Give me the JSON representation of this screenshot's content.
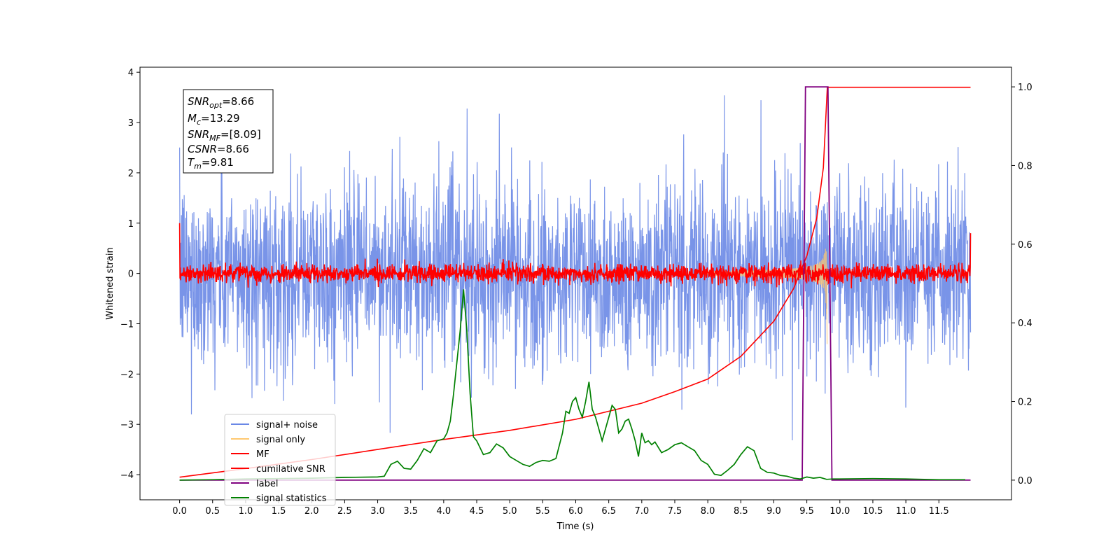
{
  "chart_data": {
    "type": "line",
    "title": "",
    "xlabel": "Time (s)",
    "ylabel": "Whitened strain",
    "xlim": [
      -0.6,
      12.6
    ],
    "ylim": [
      -4.5,
      4.1
    ],
    "y2lim": [
      -0.05,
      1.05
    ],
    "x_ticks": [
      0.0,
      0.5,
      1.0,
      1.5,
      2.0,
      2.5,
      3.0,
      3.5,
      4.0,
      4.5,
      5.0,
      5.5,
      6.0,
      6.5,
      7.0,
      7.5,
      8.0,
      8.5,
      9.0,
      9.5,
      10.0,
      10.5,
      11.0,
      11.5
    ],
    "x_tick_labels": [
      "0.0",
      "0.5",
      "1.0",
      "1.5",
      "2.0",
      "2.5",
      "3.0",
      "3.5",
      "4.0",
      "4.5",
      "5.0",
      "5.5",
      "6.0",
      "6.5",
      "7.0",
      "7.5",
      "8.0",
      "8.5",
      "9.0",
      "9.5",
      "10.0",
      "10.5",
      "11.0",
      "11.5"
    ],
    "y_ticks": [
      -4,
      -3,
      -2,
      -1,
      0,
      1,
      2,
      3,
      4
    ],
    "y_tick_labels": [
      "−4",
      "−3",
      "−2",
      "−1",
      "0",
      "1",
      "2",
      "3",
      "4"
    ],
    "y2_ticks": [
      0.0,
      0.2,
      0.4,
      0.6,
      0.8,
      1.0
    ],
    "y2_tick_labels": [
      "0.0",
      "0.2",
      "0.4",
      "0.6",
      "0.8",
      "1.0"
    ],
    "grid": false,
    "legend_position": "lower-left",
    "legend": [
      {
        "label": "signal+ noise",
        "color": "#6a88e6"
      },
      {
        "label": "signal only",
        "color": "#ffc870"
      },
      {
        "label": "MF",
        "color": "#ff0000"
      },
      {
        "label": "cumilative SNR",
        "color": "#ff0000"
      },
      {
        "label": "label",
        "color": "#800080"
      },
      {
        "label": "signal statistics",
        "color": "#008000"
      }
    ],
    "annotation": {
      "snr_opt": "8.66",
      "mc": "13.29",
      "snr_mf": "[8.09]",
      "csnr": "8.66",
      "tm": "9.81"
    },
    "series": [
      {
        "name": "signal+ noise",
        "axis": "left",
        "color": "#6a88e6",
        "x_range": [
          0.0,
          11.98
        ],
        "noise_std": 0.95,
        "max_value": 3.7,
        "min_value": -4.15
      },
      {
        "name": "signal only",
        "axis": "left",
        "color": "#ffc870",
        "chirp_start": 8.0,
        "merger_time": 9.81,
        "peak_amplitude": 1.7
      },
      {
        "name": "MF",
        "axis": "left",
        "color": "#ff0000",
        "x_range": [
          0.0,
          11.98
        ],
        "noise_std": 0.09,
        "edge_values": [
          1.0,
          0.8
        ]
      },
      {
        "name": "cumilative SNR",
        "axis": "left",
        "color": "#ff0000",
        "x": [
          0.0,
          1.0,
          2.0,
          3.0,
          4.0,
          5.0,
          6.0,
          7.0,
          7.5,
          8.0,
          8.5,
          9.0,
          9.3,
          9.5,
          9.65,
          9.75,
          9.81,
          11.98
        ],
        "y": [
          -4.05,
          -3.88,
          -3.7,
          -3.5,
          -3.3,
          -3.12,
          -2.9,
          -2.58,
          -2.35,
          -2.1,
          -1.65,
          -0.95,
          -0.3,
          0.35,
          1.1,
          2.1,
          3.7,
          3.7
        ]
      },
      {
        "name": "label",
        "axis": "right",
        "color": "#800080",
        "x": [
          0.0,
          9.43,
          9.48,
          9.82,
          9.88,
          11.98
        ],
        "y": [
          0.0,
          0.0,
          1.0,
          1.0,
          0.0,
          0.0
        ]
      },
      {
        "name": "signal statistics",
        "axis": "right",
        "color": "#008000",
        "x": [
          0.0,
          0.5,
          1.0,
          1.5,
          2.0,
          2.5,
          3.0,
          3.1,
          3.2,
          3.3,
          3.4,
          3.5,
          3.6,
          3.7,
          3.8,
          3.9,
          4.0,
          4.05,
          4.1,
          4.15,
          4.2,
          4.25,
          4.3,
          4.35,
          4.4,
          4.45,
          4.5,
          4.6,
          4.7,
          4.8,
          4.9,
          5.0,
          5.1,
          5.2,
          5.3,
          5.4,
          5.5,
          5.6,
          5.7,
          5.8,
          5.85,
          5.9,
          5.95,
          6.0,
          6.05,
          6.1,
          6.15,
          6.2,
          6.25,
          6.3,
          6.4,
          6.5,
          6.55,
          6.6,
          6.65,
          6.7,
          6.75,
          6.8,
          6.85,
          6.9,
          6.95,
          7.0,
          7.05,
          7.1,
          7.15,
          7.2,
          7.3,
          7.4,
          7.5,
          7.6,
          7.7,
          7.8,
          7.9,
          8.0,
          8.1,
          8.2,
          8.3,
          8.4,
          8.5,
          8.6,
          8.7,
          8.8,
          8.9,
          9.0,
          9.1,
          9.2,
          9.3,
          9.4,
          9.5,
          9.6,
          9.7,
          9.8,
          9.9,
          10.0,
          10.5,
          11.0,
          11.5,
          11.9
        ],
        "y": [
          0.0,
          0.001,
          0.003,
          0.004,
          0.005,
          0.007,
          0.008,
          0.01,
          0.04,
          0.048,
          0.03,
          0.028,
          0.05,
          0.08,
          0.07,
          0.1,
          0.105,
          0.12,
          0.15,
          0.22,
          0.3,
          0.38,
          0.485,
          0.38,
          0.22,
          0.11,
          0.1,
          0.065,
          0.07,
          0.092,
          0.082,
          0.06,
          0.05,
          0.04,
          0.035,
          0.045,
          0.05,
          0.048,
          0.055,
          0.12,
          0.175,
          0.17,
          0.2,
          0.21,
          0.18,
          0.16,
          0.2,
          0.25,
          0.18,
          0.16,
          0.1,
          0.16,
          0.19,
          0.18,
          0.12,
          0.13,
          0.15,
          0.155,
          0.13,
          0.1,
          0.06,
          0.12,
          0.095,
          0.1,
          0.09,
          0.097,
          0.07,
          0.078,
          0.09,
          0.095,
          0.085,
          0.075,
          0.05,
          0.04,
          0.015,
          0.012,
          0.025,
          0.04,
          0.065,
          0.085,
          0.075,
          0.03,
          0.02,
          0.018,
          0.012,
          0.01,
          0.005,
          0.003,
          0.008,
          0.005,
          0.007,
          0.002,
          0.003,
          0.003,
          0.004,
          0.003,
          0.001,
          0.001
        ]
      }
    ]
  }
}
